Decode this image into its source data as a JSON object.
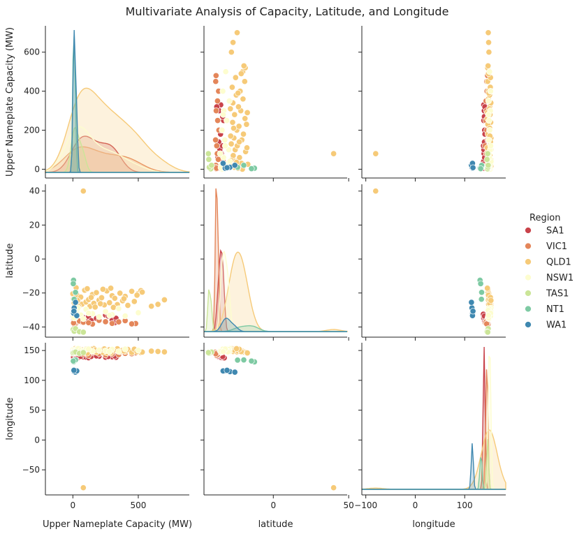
{
  "figure": {
    "title": "Multivariate Analysis of Capacity, Latitude, and Longitude"
  },
  "legend": {
    "title": "Region",
    "placement": "right",
    "entries": [
      {
        "name": "SA1",
        "color": "#c9434a"
      },
      {
        "name": "VIC1",
        "color": "#e4865a"
      },
      {
        "name": "QLD1",
        "color": "#f6ca78"
      },
      {
        "name": "NSW1",
        "color": "#fdfdcf"
      },
      {
        "name": "TAS1",
        "color": "#cbe598"
      },
      {
        "name": "NT1",
        "color": "#7ecaa3"
      },
      {
        "name": "WA1",
        "color": "#3f88b0"
      }
    ]
  },
  "chart_data": {
    "type": "scatter",
    "kind": "pairplot",
    "variables": [
      "Upper Nameplate Capacity (MW)",
      "latitude",
      "longitude"
    ],
    "ranges": {
      "Upper Nameplate Capacity (MW)": [
        -210,
        890
      ],
      "latitude": [
        -46,
        49
      ],
      "longitude": [
        -108,
        183
      ]
    },
    "ticks": {
      "Upper Nameplate Capacity (MW)": [
        0,
        500
      ],
      "latitude": [
        0,
        50
      ],
      "longitude": [
        -100,
        0,
        100
      ]
    },
    "row_ticks": {
      "Upper Nameplate Capacity (MW)": [
        0,
        200,
        400,
        600
      ],
      "latitude": [
        -40,
        -20,
        0,
        20,
        40
      ],
      "longitude": [
        -50,
        0,
        50,
        100,
        150
      ]
    },
    "row_ranges": {
      "Upper Nameplate Capacity (MW)": [
        -45,
        735
      ],
      "latitude": [
        -46,
        44
      ],
      "longitude": [
        -92,
        163
      ]
    },
    "hue": "Region",
    "grid": false,
    "series": [
      {
        "name": "SA1",
        "color": "#c9434a",
        "points": [
          [
            5,
            -35.1,
            138.6
          ],
          [
            40,
            -33.2,
            138.2
          ],
          [
            80,
            -34.5,
            139.1
          ],
          [
            100,
            -35.5,
            138.8
          ],
          [
            120,
            -33.8,
            137.9
          ],
          [
            140,
            -36.2,
            139.9
          ],
          [
            200,
            -34.2,
            140.3
          ],
          [
            250,
            -33.0,
            138.7
          ],
          [
            300,
            -35.9,
            139.5
          ],
          [
            330,
            -34.9,
            138.5
          ],
          [
            320,
            -37.5,
            140.8
          ],
          [
            25,
            -32.5,
            137.6
          ],
          [
            60,
            -36.8,
            140.2
          ],
          [
            180,
            -35.0,
            140.9
          ],
          [
            270,
            -33.6,
            139.8
          ]
        ]
      },
      {
        "name": "VIC1",
        "color": "#e4865a",
        "points": [
          [
            2,
            -37.8,
            144.9
          ],
          [
            20,
            -38.1,
            145.3
          ],
          [
            50,
            -36.5,
            146.0
          ],
          [
            80,
            -37.2,
            143.8
          ],
          [
            150,
            -38.3,
            146.4
          ],
          [
            250,
            -36.9,
            142.5
          ],
          [
            300,
            -37.9,
            144.2
          ],
          [
            400,
            -36.3,
            145.1
          ],
          [
            480,
            -38.0,
            146.2
          ],
          [
            10,
            -38.4,
            147.1
          ],
          [
            120,
            -37.5,
            141.6
          ],
          [
            200,
            -36.1,
            144.7
          ],
          [
            350,
            -37.0,
            143.1
          ],
          [
            5,
            -37.6,
            145.7
          ],
          [
            450,
            -38.2,
            144.5
          ]
        ]
      },
      {
        "name": "QLD1",
        "color": "#f6ca78",
        "points": [
          [
            80,
            40.0,
            -80.0
          ],
          [
            0,
            -20.5,
            148.5
          ],
          [
            5,
            -23.5,
            150.5
          ],
          [
            10,
            -26.0,
            152.0
          ],
          [
            15,
            -27.5,
            153.0
          ],
          [
            20,
            -19.3,
            146.8
          ],
          [
            25,
            -16.9,
            145.8
          ],
          [
            30,
            -21.1,
            149.2
          ],
          [
            40,
            -24.8,
            151.9
          ],
          [
            50,
            -27.2,
            152.4
          ],
          [
            60,
            -22.4,
            147.6
          ],
          [
            70,
            -26.6,
            151.1
          ],
          [
            90,
            -18.4,
            146.3
          ],
          [
            100,
            -25.3,
            152.7
          ],
          [
            120,
            -23.9,
            149.8
          ],
          [
            130,
            -27.9,
            151.6
          ],
          [
            150,
            -20.9,
            148.3
          ],
          [
            160,
            -26.1,
            153.2
          ],
          [
            180,
            -19.8,
            147.1
          ],
          [
            200,
            -24.2,
            150.1
          ],
          [
            220,
            -22.8,
            148.9
          ],
          [
            240,
            -27.0,
            152.6
          ],
          [
            260,
            -18.8,
            146.0
          ],
          [
            280,
            -25.7,
            151.4
          ],
          [
            300,
            -21.6,
            149.5
          ],
          [
            320,
            -23.1,
            150.8
          ],
          [
            340,
            -26.8,
            152.9
          ],
          [
            360,
            -20.1,
            147.9
          ],
          [
            380,
            -24.6,
            150.4
          ],
          [
            400,
            -22.0,
            148.1
          ],
          [
            420,
            -27.3,
            151.8
          ],
          [
            450,
            -19.0,
            146.6
          ],
          [
            470,
            -25.0,
            152.2
          ],
          [
            500,
            -20.3,
            148.7
          ],
          [
            520,
            -18.6,
            146.4
          ],
          [
            530,
            -19.5,
            147.3
          ],
          [
            600,
            -27.8,
            149.0
          ],
          [
            650,
            -26.7,
            148.4
          ],
          [
            700,
            -24.0,
            147.7
          ],
          [
            45,
            -28.0,
            153.4
          ],
          [
            110,
            -17.5,
            145.5
          ],
          [
            170,
            -28.3,
            151.0
          ],
          [
            230,
            -17.8,
            146.9
          ],
          [
            310,
            -28.5,
            150.2
          ],
          [
            390,
            -23.4,
            149.1
          ],
          [
            490,
            -21.3,
            148.0
          ],
          [
            210,
            -26.3,
            150.6
          ],
          [
            140,
            -22.6,
            152.1
          ],
          [
            290,
            -17.2,
            145.9
          ],
          [
            35,
            -24.4,
            153.1
          ]
        ]
      },
      {
        "name": "NSW1",
        "color": "#fdfdcf",
        "points": [
          [
            0,
            -33.9,
            151.2
          ],
          [
            5,
            -32.5,
            149.8
          ],
          [
            10,
            -31.0,
            150.9
          ],
          [
            20,
            -34.5,
            147.0
          ],
          [
            30,
            -30.5,
            152.8
          ],
          [
            40,
            -28.8,
            153.3
          ],
          [
            60,
            -33.0,
            150.1
          ],
          [
            80,
            -35.2,
            149.1
          ],
          [
            100,
            -29.6,
            151.7
          ],
          [
            150,
            -32.2,
            148.7
          ],
          [
            200,
            -34.0,
            150.6
          ],
          [
            250,
            -30.9,
            149.4
          ],
          [
            300,
            -32.8,
            151.9
          ],
          [
            350,
            -29.2,
            148.2
          ],
          [
            400,
            -33.5,
            152.3
          ],
          [
            500,
            -31.6,
            150.4
          ],
          [
            8,
            -34.8,
            148.3
          ],
          [
            15,
            -30.2,
            147.6
          ],
          [
            120,
            -31.9,
            152.5
          ],
          [
            280,
            -33.2,
            147.9
          ]
        ]
      },
      {
        "name": "TAS1",
        "color": "#cbe598",
        "points": [
          [
            2,
            -41.5,
            146.0
          ],
          [
            10,
            -42.5,
            146.8
          ],
          [
            20,
            -41.0,
            147.5
          ],
          [
            50,
            -42.8,
            145.2
          ],
          [
            80,
            -43.1,
            146.5
          ]
        ]
      },
      {
        "name": "NT1",
        "color": "#7ecaa3",
        "points": [
          [
            5,
            -12.5,
            131.0
          ],
          [
            10,
            -23.7,
            133.9
          ],
          [
            20,
            -19.6,
            134.2
          ],
          [
            3,
            -14.5,
            132.3
          ]
        ]
      },
      {
        "name": "WA1",
        "color": "#3f88b0",
        "points": [
          [
            5,
            -31.9,
            115.9
          ],
          [
            10,
            -28.8,
            114.6
          ],
          [
            20,
            -25.5,
            113.7
          ],
          [
            30,
            -33.3,
            115.7
          ],
          [
            8,
            -30.7,
            116.8
          ]
        ]
      }
    ]
  }
}
